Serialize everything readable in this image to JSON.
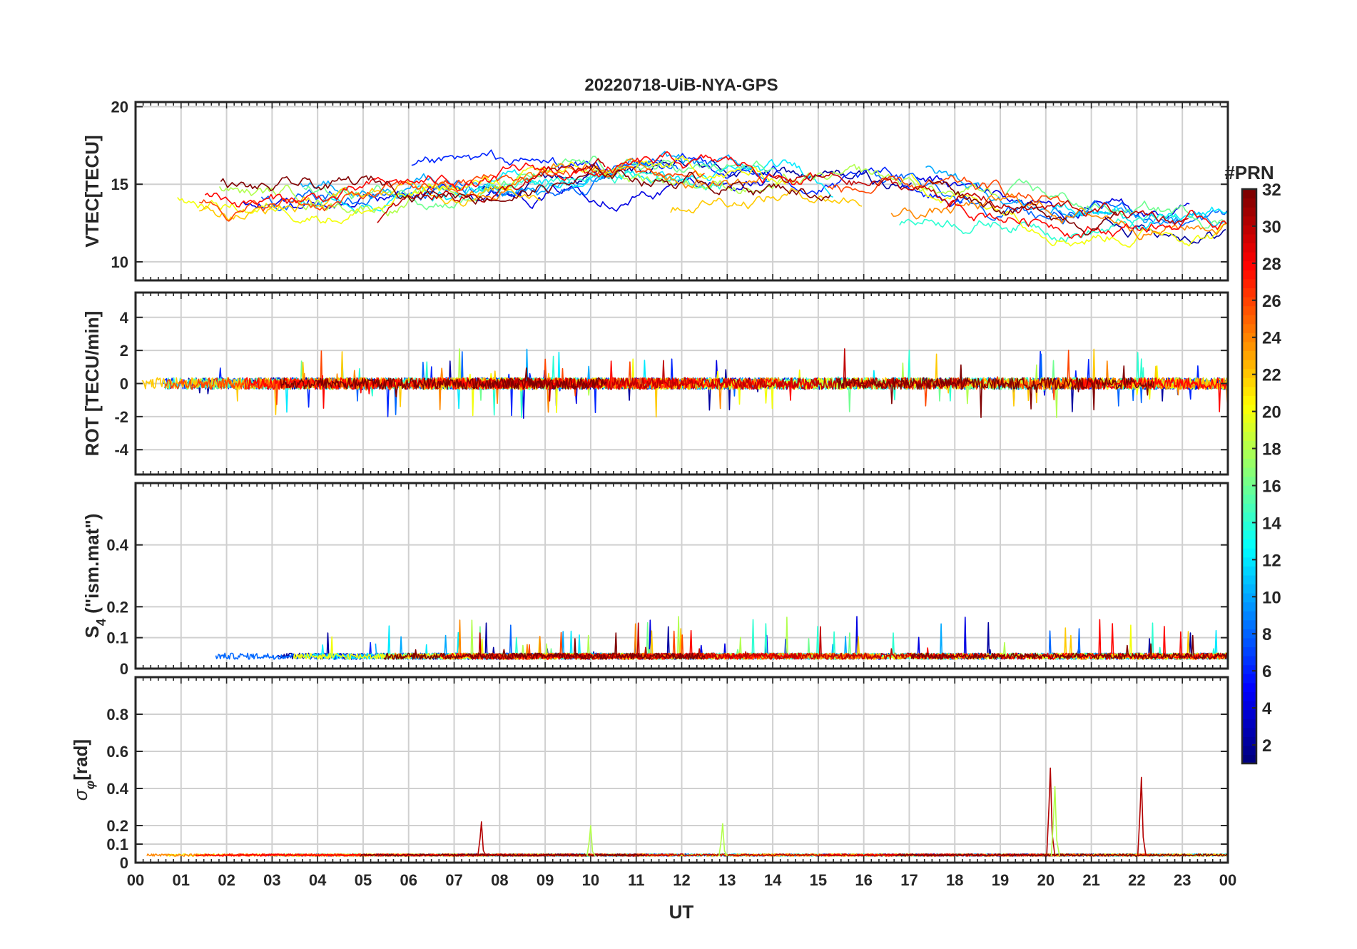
{
  "chart_data": {
    "type": "line",
    "title": "20220718-UiB-NYA-GPS",
    "xlabel": "UT",
    "x_range_hours": [
      0,
      24
    ],
    "x_tick_labels": [
      "00",
      "01",
      "02",
      "03",
      "04",
      "05",
      "06",
      "07",
      "08",
      "09",
      "10",
      "11",
      "12",
      "13",
      "14",
      "15",
      "16",
      "17",
      "18",
      "19",
      "20",
      "21",
      "22",
      "23",
      "00"
    ],
    "colorbar": {
      "title": "#PRN",
      "range": [
        1,
        32
      ],
      "tick_labels": [
        "2",
        "4",
        "6",
        "8",
        "10",
        "12",
        "14",
        "16",
        "18",
        "20",
        "22",
        "24",
        "26",
        "28",
        "30",
        "32"
      ],
      "colormap": "jet"
    },
    "panels": [
      {
        "id": "vtec",
        "ylabel": "VTEC[TECU]",
        "ylim": [
          8.8,
          20.3
        ],
        "yticks": [
          10,
          15,
          20
        ],
        "grid": true,
        "baseline": 14.2,
        "noise": 0.55,
        "series_note": "one trace per PRN, diurnal level ~11-17 TECU"
      },
      {
        "id": "rot",
        "ylabel": "ROT [TECU/min]",
        "ylim": [
          -5.5,
          5.5
        ],
        "yticks": [
          -4,
          -2,
          0,
          2,
          4
        ],
        "grid": true,
        "baseline": 0,
        "noise": 0.35
      },
      {
        "id": "s4",
        "ylabel": "S",
        "ylabel_sub": "4",
        "ylabel_rest": " (\"ism.mat\")",
        "ylim": [
          0,
          0.6
        ],
        "yticks": [
          0,
          0.1,
          0.2,
          0.4
        ],
        "grid": true,
        "baseline": 0.03,
        "noise": 0.02
      },
      {
        "id": "sigma",
        "ylabel": "σ",
        "ylabel_sub": "φ",
        "ylabel_rest": "[rad]",
        "ylim": [
          0,
          1
        ],
        "yticks": [
          0,
          0.1,
          0.2,
          0.4,
          0.6,
          0.8
        ],
        "grid": true,
        "baseline": 0.035,
        "noise": 0.012,
        "spikes": [
          {
            "hour": 20.1,
            "value": 0.51
          },
          {
            "hour": 20.2,
            "value": 0.41
          },
          {
            "hour": 22.1,
            "value": 0.46
          },
          {
            "hour": 12.9,
            "value": 0.21
          },
          {
            "hour": 7.6,
            "value": 0.22
          },
          {
            "hour": 10.0,
            "value": 0.2
          }
        ]
      }
    ]
  }
}
